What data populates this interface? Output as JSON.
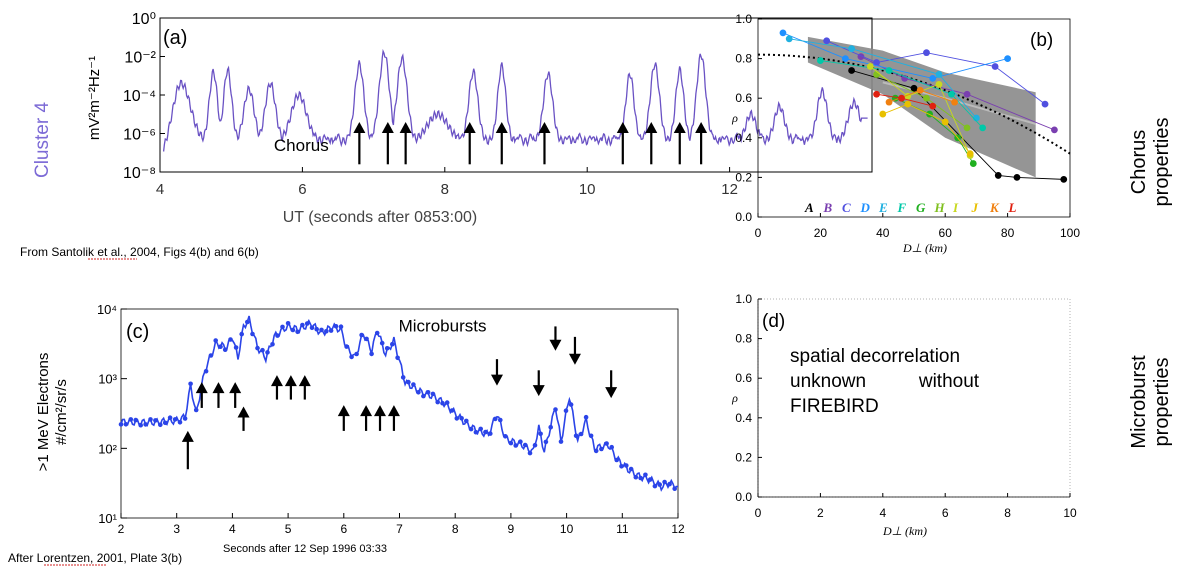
{
  "colors": {
    "panel_a_line": "#6a52c4",
    "panel_a_label": "#7c6ad6",
    "panel_c_line": "#2b44e8",
    "panel_b_band": "#8a8a8a",
    "arrow": "#000000",
    "microburst_arrow": "#000000"
  },
  "side_labels": {
    "cluster": "Cluster 4",
    "chorus_line1": "Chorus",
    "chorus_line2": "properties",
    "micro_line1": "Microburst",
    "micro_line2": "properties"
  },
  "captions": {
    "a_source": "From Santolik et al., 2004, Figs 4(b) and  6(b)",
    "c_source": "After Lorentzen, 2001, Plate 3(b)"
  },
  "chart_data": [
    {
      "id": "a",
      "type": "line",
      "panel_label": "(a)",
      "xlabel": "UT (seconds after 0853:00)",
      "ylabel": "mV²m⁻²Hz⁻¹",
      "xlim": [
        4,
        14
      ],
      "ylim_log10": [
        -8,
        0
      ],
      "yscale": "log",
      "xticks": [
        4,
        6,
        8,
        10,
        12
      ],
      "yticks": [
        {
          "exp": 0,
          "label": "10⁰"
        },
        {
          "exp": -2,
          "label": "10⁻²"
        },
        {
          "exp": -4,
          "label": "10⁻⁴"
        },
        {
          "exp": -6,
          "label": "10⁻⁶"
        },
        {
          "exp": -8,
          "label": "10⁻⁸"
        }
      ],
      "annotation": {
        "text": "Chorus",
        "x": 5.6,
        "y_exp": -6.9
      },
      "arrows_x": [
        6.8,
        7.2,
        7.45,
        8.35,
        8.8,
        9.4,
        10.5,
        10.9,
        11.3,
        11.6
      ],
      "arrows_tip_exp": -5.4,
      "arrows_base_exp": -7.6,
      "series": [
        {
          "peaks": [
            {
              "x": 4.3,
              "y_exp": -3.4,
              "w": 0.18
            },
            {
              "x": 4.75,
              "y_exp": -2.8,
              "w": 0.08
            },
            {
              "x": 4.95,
              "y_exp": -2.7,
              "w": 0.08
            },
            {
              "x": 5.25,
              "y_exp": -3.7,
              "w": 0.1
            },
            {
              "x": 5.55,
              "y_exp": -3.4,
              "w": 0.1
            },
            {
              "x": 5.95,
              "y_exp": -4.0,
              "w": 0.15
            },
            {
              "x": 6.8,
              "y_exp": -2.4,
              "w": 0.09
            },
            {
              "x": 7.15,
              "y_exp": -1.8,
              "w": 0.1
            },
            {
              "x": 7.4,
              "y_exp": -2.1,
              "w": 0.1
            },
            {
              "x": 7.9,
              "y_exp": -5.0,
              "w": 0.2
            },
            {
              "x": 8.4,
              "y_exp": -2.8,
              "w": 0.09
            },
            {
              "x": 8.8,
              "y_exp": -2.5,
              "w": 0.08
            },
            {
              "x": 9.45,
              "y_exp": -2.9,
              "w": 0.09
            },
            {
              "x": 10.6,
              "y_exp": -2.9,
              "w": 0.08
            },
            {
              "x": 10.95,
              "y_exp": -2.4,
              "w": 0.09
            },
            {
              "x": 11.3,
              "y_exp": -2.7,
              "w": 0.08
            },
            {
              "x": 11.6,
              "y_exp": -1.9,
              "w": 0.09
            },
            {
              "x": 12.3,
              "y_exp": -5.0,
              "w": 0.1
            },
            {
              "x": 12.7,
              "y_exp": -4.6,
              "w": 0.1
            },
            {
              "x": 13.3,
              "y_exp": -3.8,
              "w": 0.1
            },
            {
              "x": 13.75,
              "y_exp": -4.4,
              "w": 0.12
            }
          ],
          "baseline_exp": -6.4,
          "start_exp": -7.2,
          "end_exp": -5.2
        }
      ]
    },
    {
      "id": "b",
      "type": "scatter",
      "panel_label": "(b)",
      "xlabel": "D⊥ (km)",
      "ylabel": "ρ",
      "xlim": [
        0,
        100
      ],
      "ylim": [
        0,
        1.0
      ],
      "xticks": [
        0,
        20,
        40,
        60,
        80,
        100
      ],
      "yticks": [
        0.0,
        0.2,
        0.4,
        0.6,
        0.8,
        1.0
      ],
      "ytick_labels": [
        "0.0",
        "0.2",
        "0.4",
        "0.6",
        "0.8",
        "1.0"
      ],
      "band_upper": [
        [
          16,
          0.91
        ],
        [
          40,
          0.84
        ],
        [
          60,
          0.73
        ],
        [
          89,
          0.63
        ]
      ],
      "band_lower": [
        [
          16,
          0.78
        ],
        [
          40,
          0.62
        ],
        [
          60,
          0.4
        ],
        [
          89,
          0.2
        ]
      ],
      "band_mid_lower": [
        [
          40,
          0.68
        ],
        [
          60,
          0.6
        ],
        [
          89,
          0.47
        ]
      ],
      "fit_curve": {
        "formula": "0.82 - 0.00005*x^2",
        "x_range": [
          0,
          100
        ]
      },
      "legend_letters": [
        "A",
        "B",
        "C",
        "D",
        "E",
        "F",
        "G",
        "H",
        "I",
        "J",
        "K",
        "L"
      ],
      "legend_colors": [
        "#000000",
        "#7a3fb0",
        "#5050e0",
        "#1e90ff",
        "#20b0e0",
        "#00c8a8",
        "#20b020",
        "#80c020",
        "#c8d820",
        "#e8c000",
        "#f08010",
        "#e02010"
      ],
      "series": [
        {
          "name": "A",
          "color": "#000000",
          "points": [
            [
              30,
              0.74
            ],
            [
              50,
              0.65
            ],
            [
              77,
              0.21
            ],
            [
              83,
              0.2
            ],
            [
              98,
              0.19
            ]
          ]
        },
        {
          "name": "B",
          "color": "#7a3fb0",
          "points": [
            [
              33,
              0.81
            ],
            [
              47,
              0.7
            ],
            [
              67,
              0.62
            ],
            [
              95,
              0.44
            ]
          ]
        },
        {
          "name": "C",
          "color": "#5050e0",
          "points": [
            [
              22,
              0.89
            ],
            [
              38,
              0.78
            ],
            [
              54,
              0.83
            ],
            [
              76,
              0.76
            ],
            [
              92,
              0.57
            ]
          ]
        },
        {
          "name": "D",
          "color": "#1e90ff",
          "points": [
            [
              8,
              0.93
            ],
            [
              28,
              0.8
            ],
            [
              56,
              0.7
            ],
            [
              80,
              0.8
            ]
          ]
        },
        {
          "name": "E",
          "color": "#20b0e0",
          "points": [
            [
              10,
              0.9
            ],
            [
              30,
              0.85
            ],
            [
              58,
              0.72
            ],
            [
              70,
              0.5
            ]
          ]
        },
        {
          "name": "F",
          "color": "#00c8a8",
          "points": [
            [
              20,
              0.79
            ],
            [
              42,
              0.74
            ],
            [
              62,
              0.62
            ],
            [
              72,
              0.45
            ]
          ]
        },
        {
          "name": "G",
          "color": "#20b020",
          "points": [
            [
              44,
              0.6
            ],
            [
              55,
              0.52
            ],
            [
              64,
              0.4
            ],
            [
              69,
              0.27
            ]
          ]
        },
        {
          "name": "H",
          "color": "#80c020",
          "points": [
            [
              38,
              0.72
            ],
            [
              54,
              0.6
            ],
            [
              67,
              0.45
            ]
          ]
        },
        {
          "name": "I",
          "color": "#c8d820",
          "points": [
            [
              36,
              0.76
            ],
            [
              48,
              0.61
            ],
            [
              58,
              0.67
            ],
            [
              68,
              0.31
            ]
          ]
        },
        {
          "name": "J",
          "color": "#e8c000",
          "points": [
            [
              40,
              0.52
            ],
            [
              48,
              0.57
            ],
            [
              60,
              0.48
            ],
            [
              68,
              0.32
            ]
          ]
        },
        {
          "name": "K",
          "color": "#f08010",
          "points": [
            [
              42,
              0.58
            ],
            [
              52,
              0.64
            ],
            [
              63,
              0.58
            ]
          ]
        },
        {
          "name": "L",
          "color": "#e02010",
          "points": [
            [
              38,
              0.62
            ],
            [
              46,
              0.6
            ],
            [
              56,
              0.56
            ]
          ]
        }
      ]
    },
    {
      "id": "c",
      "type": "line",
      "panel_label": "(c)",
      "xlabel": "Seconds after 12 Sep 1996 03:33",
      "ylabel_line1": ">1 MeV Electrons",
      "ylabel_line2": "#/cm²/sr/s",
      "xlim": [
        2,
        12
      ],
      "ylim_log10": [
        1,
        4
      ],
      "yscale": "log",
      "xticks": [
        2,
        3,
        4,
        5,
        6,
        7,
        8,
        9,
        10,
        11,
        12
      ],
      "yticks": [
        {
          "exp": 4,
          "label": "10⁴"
        },
        {
          "exp": 3,
          "label": "10³"
        },
        {
          "exp": 2,
          "label": "10²"
        },
        {
          "exp": 1,
          "label": "10¹"
        }
      ],
      "annotation": {
        "text": "Microbursts",
        "x": 8.6,
        "y_exp": 3.68
      },
      "up_arrows": [
        {
          "x": 3.2,
          "tip_exp": 2.25,
          "base_exp": 1.7
        },
        {
          "x": 3.45,
          "tip_exp": 2.95,
          "base_exp": 2.58
        },
        {
          "x": 3.75,
          "tip_exp": 2.95,
          "base_exp": 2.58
        },
        {
          "x": 4.05,
          "tip_exp": 2.95,
          "base_exp": 2.58
        },
        {
          "x": 4.2,
          "tip_exp": 2.6,
          "base_exp": 2.25
        },
        {
          "x": 4.8,
          "tip_exp": 3.05,
          "base_exp": 2.7
        },
        {
          "x": 5.05,
          "tip_exp": 3.05,
          "base_exp": 2.7
        },
        {
          "x": 5.3,
          "tip_exp": 3.05,
          "base_exp": 2.7
        },
        {
          "x": 6.0,
          "tip_exp": 2.62,
          "base_exp": 2.25
        },
        {
          "x": 6.4,
          "tip_exp": 2.62,
          "base_exp": 2.25
        },
        {
          "x": 6.65,
          "tip_exp": 2.62,
          "base_exp": 2.25
        },
        {
          "x": 6.9,
          "tip_exp": 2.62,
          "base_exp": 2.25
        }
      ],
      "down_arrows": [
        {
          "x": 8.75,
          "tip_exp": 2.9,
          "base_exp": 3.28
        },
        {
          "x": 9.5,
          "tip_exp": 2.75,
          "base_exp": 3.12
        },
        {
          "x": 9.8,
          "tip_exp": 3.4,
          "base_exp": 3.75
        },
        {
          "x": 10.15,
          "tip_exp": 3.2,
          "base_exp": 3.6
        },
        {
          "x": 10.8,
          "tip_exp": 2.72,
          "base_exp": 3.12
        }
      ],
      "series": [
        {
          "points": [
            [
              2.0,
              2.38
            ],
            [
              2.5,
              2.37
            ],
            [
              3.0,
              2.4
            ],
            [
              3.15,
              2.45
            ],
            [
              3.25,
              2.9
            ],
            [
              3.35,
              2.5
            ],
            [
              3.5,
              3.1
            ],
            [
              3.7,
              3.5
            ],
            [
              3.9,
              3.45
            ],
            [
              4.0,
              3.6
            ],
            [
              4.1,
              3.3
            ],
            [
              4.2,
              3.75
            ],
            [
              4.3,
              3.85
            ],
            [
              4.45,
              3.45
            ],
            [
              4.6,
              3.3
            ],
            [
              4.75,
              3.6
            ],
            [
              4.9,
              3.7
            ],
            [
              5.0,
              3.75
            ],
            [
              5.2,
              3.7
            ],
            [
              5.4,
              3.8
            ],
            [
              5.6,
              3.65
            ],
            [
              5.8,
              3.75
            ],
            [
              5.95,
              3.7
            ],
            [
              6.05,
              3.45
            ],
            [
              6.2,
              3.3
            ],
            [
              6.35,
              3.65
            ],
            [
              6.5,
              3.4
            ],
            [
              6.6,
              3.7
            ],
            [
              6.75,
              3.35
            ],
            [
              6.9,
              3.55
            ],
            [
              7.0,
              3.25
            ],
            [
              7.1,
              2.95
            ],
            [
              7.4,
              2.8
            ],
            [
              7.6,
              2.75
            ],
            [
              7.8,
              2.65
            ],
            [
              8.0,
              2.5
            ],
            [
              8.2,
              2.35
            ],
            [
              8.4,
              2.25
            ],
            [
              8.6,
              2.2
            ],
            [
              8.75,
              2.5
            ],
            [
              8.9,
              2.15
            ],
            [
              9.0,
              2.1
            ],
            [
              9.2,
              2.05
            ],
            [
              9.4,
              1.95
            ],
            [
              9.5,
              2.3
            ],
            [
              9.6,
              1.95
            ],
            [
              9.8,
              2.6
            ],
            [
              9.9,
              2.1
            ],
            [
              10.05,
              2.75
            ],
            [
              10.2,
              2.1
            ],
            [
              10.35,
              2.4
            ],
            [
              10.5,
              2.0
            ],
            [
              10.75,
              2.05
            ],
            [
              10.9,
              1.85
            ],
            [
              11.1,
              1.7
            ],
            [
              11.3,
              1.6
            ],
            [
              11.5,
              1.55
            ],
            [
              11.7,
              1.45
            ],
            [
              11.85,
              1.5
            ],
            [
              12.0,
              1.45
            ]
          ]
        }
      ]
    },
    {
      "id": "d",
      "type": "scatter",
      "panel_label": "(d)",
      "xlabel": "D⊥ (km)",
      "ylabel": "ρ",
      "xlim": [
        0,
        100
      ],
      "ylim": [
        0,
        1.0
      ],
      "xtick_labels": [
        "0",
        "2",
        "4",
        "6",
        "8",
        "10"
      ],
      "yticks": [
        0.0,
        0.2,
        0.4,
        0.6,
        0.8,
        1.0
      ],
      "ytick_labels": [
        "0.0",
        "0.2",
        "0.4",
        "0.6",
        "0.8",
        "1.0"
      ],
      "note_lines": [
        "spatial decorrelation",
        "unknown          without",
        "FIREBIRD"
      ],
      "series": []
    }
  ]
}
